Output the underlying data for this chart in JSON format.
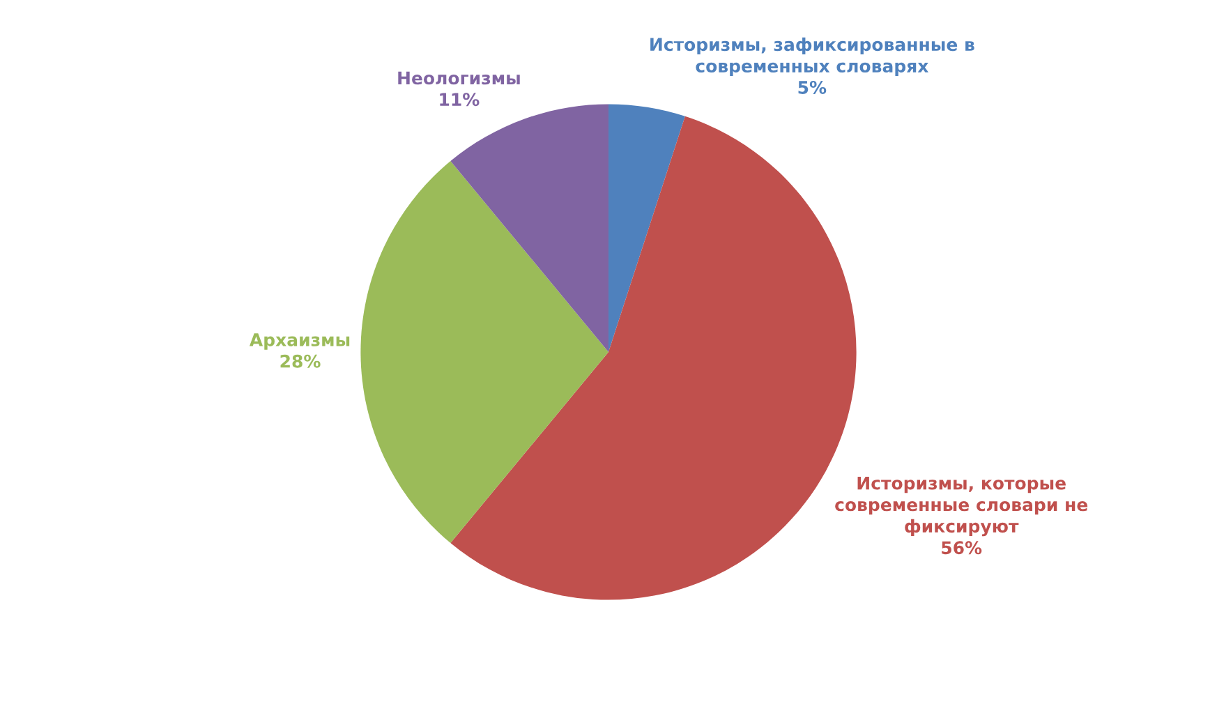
{
  "chart_data": {
    "type": "pie",
    "categories": [
      "Историзмы, зафиксированные в\nсовременных словарях",
      "Историзмы, которые\nсовременные словари не\nфиксируют",
      "Архаизмы",
      "Неологизмы"
    ],
    "values": [
      5,
      56,
      28,
      11
    ],
    "value_labels": [
      "5%",
      "56%",
      "28%",
      "11%"
    ],
    "colors": [
      "#4f81bd",
      "#c0504d",
      "#9bbb59",
      "#8064a2"
    ]
  }
}
